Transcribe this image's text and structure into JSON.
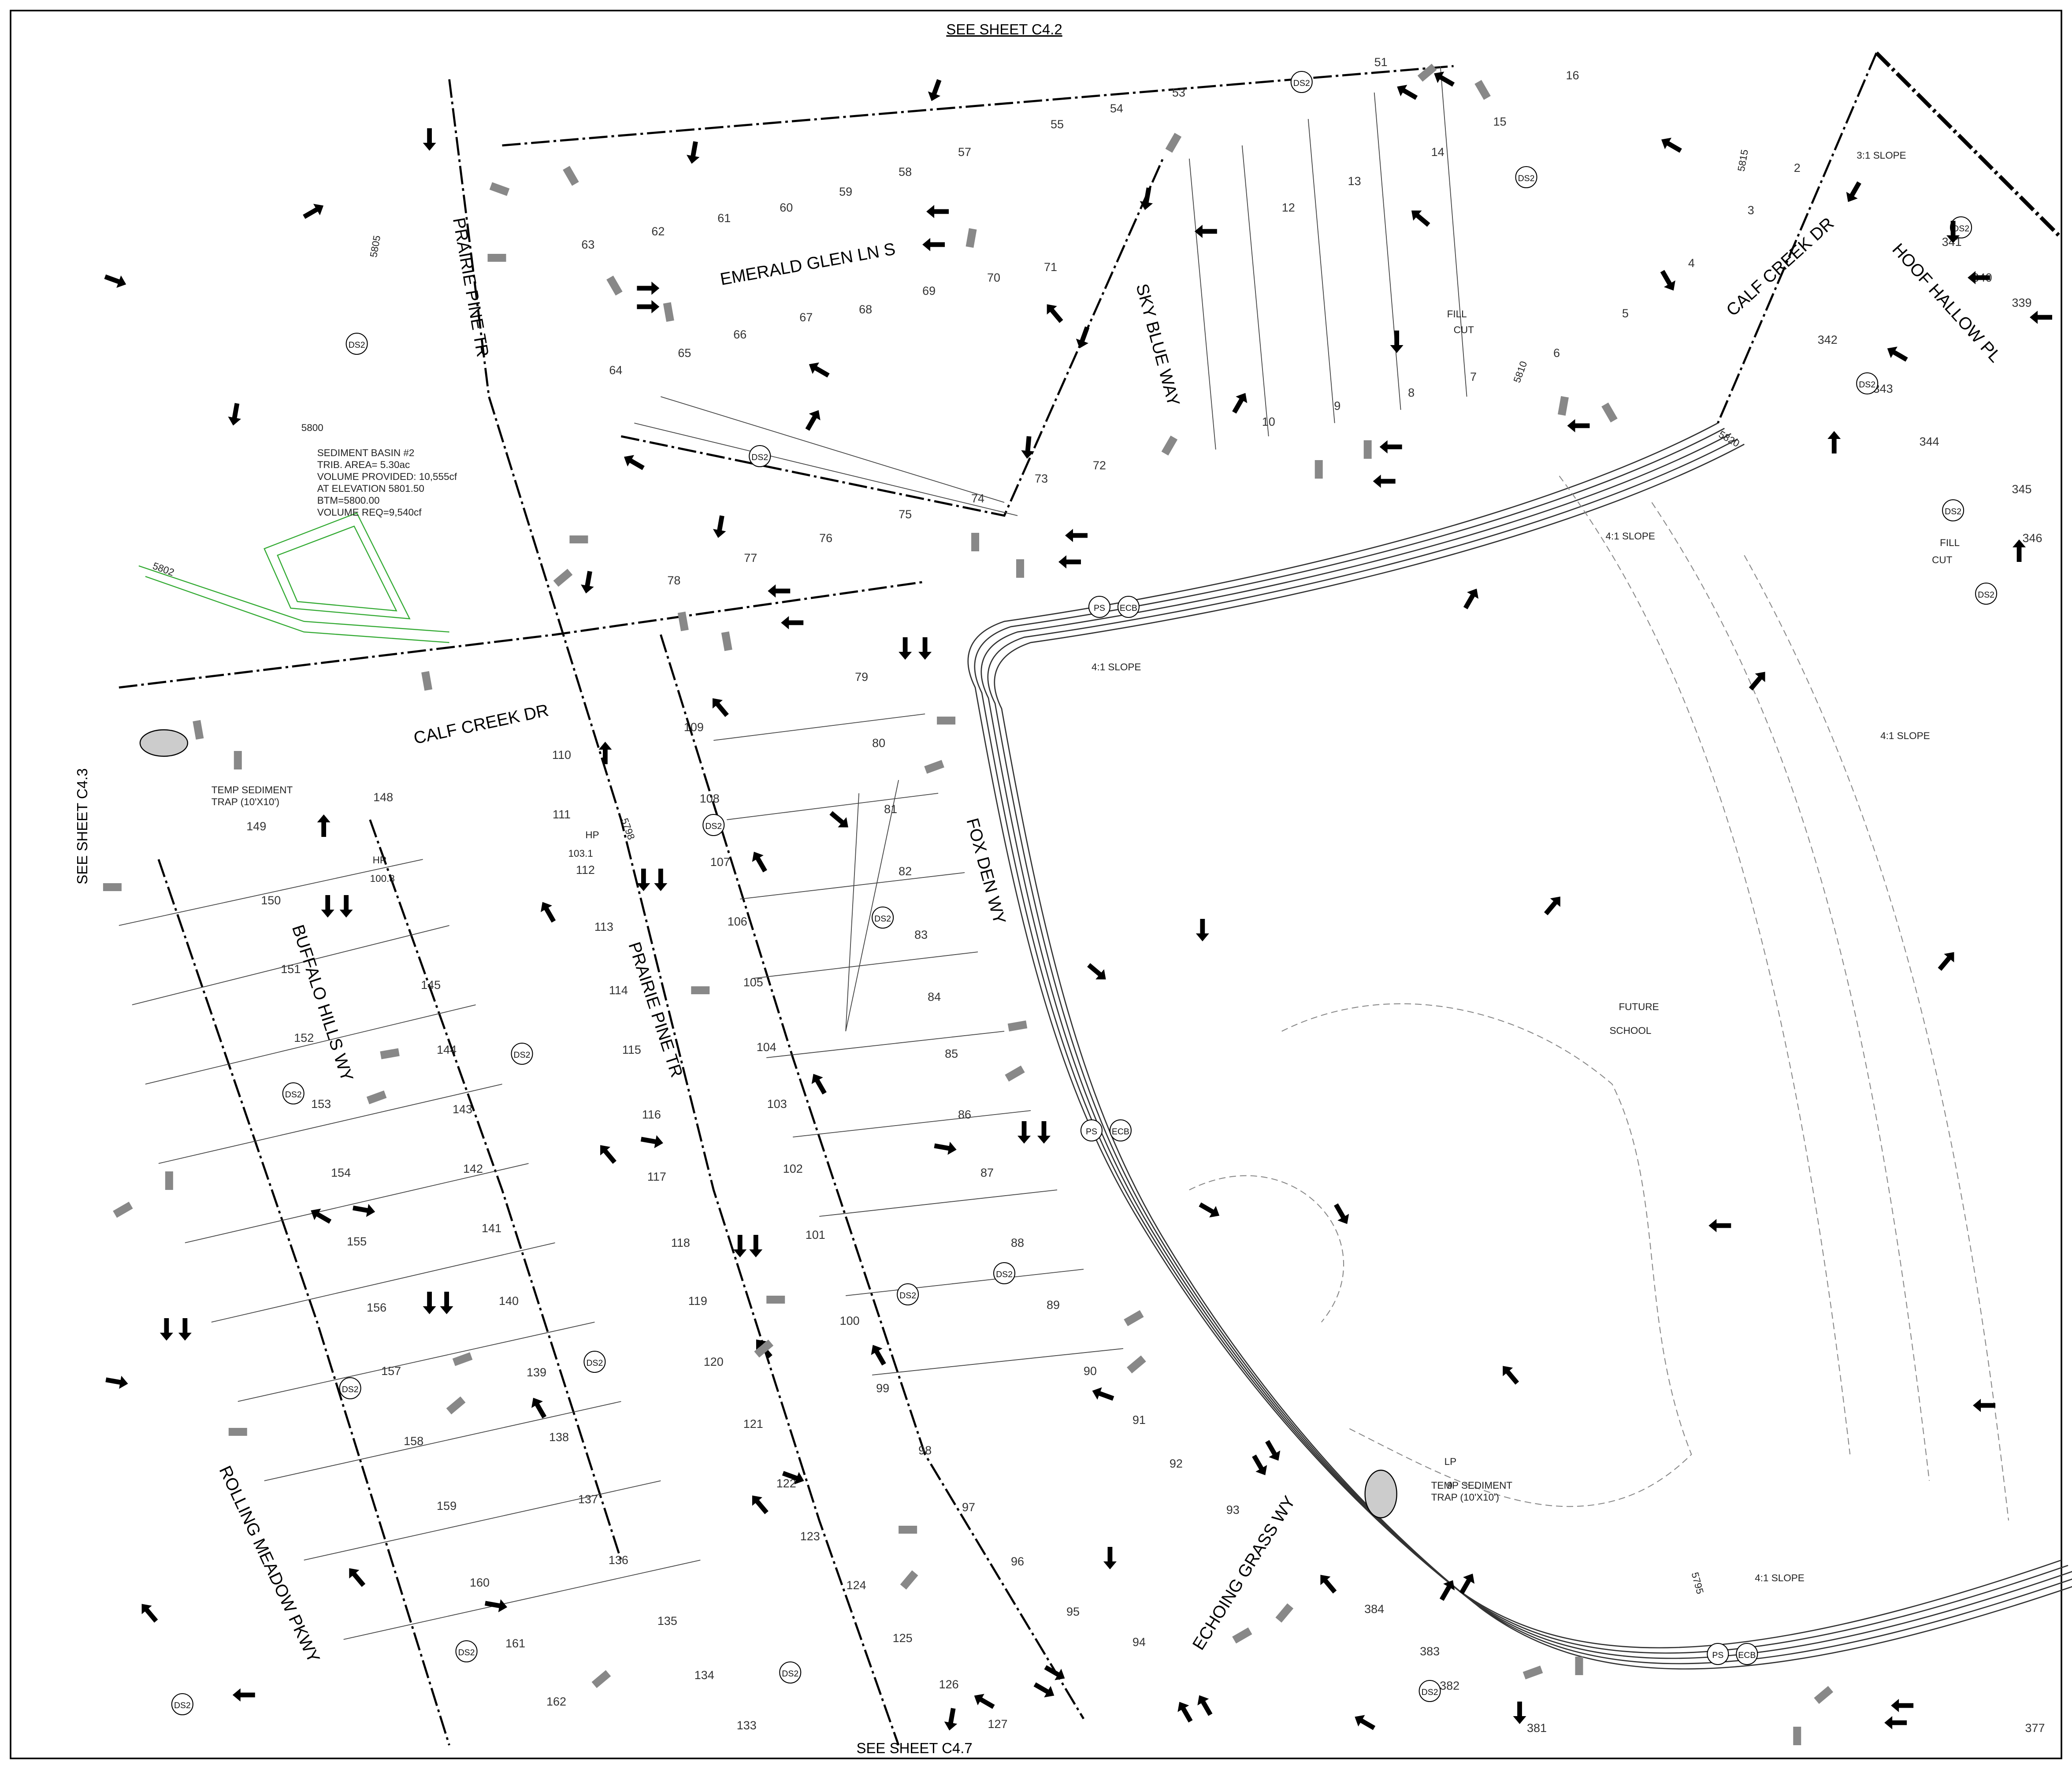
{
  "sheet_refs": {
    "top": "SEE SHEET C4.2",
    "bottom": "SEE SHEET C4.7",
    "left": "SEE SHEET C4.3"
  },
  "streets": [
    "PRAIRIE PINE TR",
    "EMERALD GLEN LN S",
    "SKY BLUE WAY",
    "CALF CREEK DR",
    "HOOF HALLOW PL",
    "CALF CREEK DR",
    "FOX DEN WY",
    "PRAIRIE PINE TR",
    "BUFFALO HILLS WY",
    "ROLLING MEADOW PKWY",
    "ECHOING GRASS WY"
  ],
  "sediment_basin": [
    "SEDIMENT BASIN #2",
    "TRIB. AREA= 5.30ac",
    "VOLUME PROVIDED: 10,555cf",
    "AT ELEVATION 5801.50",
    "BTM=5800.00",
    "VOLUME REQ=9,540cf"
  ],
  "notes": {
    "trap": [
      "TEMP SEDIMENT",
      "TRAP (10'X10')"
    ],
    "slope4": "4:1 SLOPE",
    "slope3": "3:1 SLOPE",
    "school": [
      "FUTURE",
      "SCHOOL"
    ],
    "hp1": [
      "HP",
      "103.1"
    ],
    "hp2": [
      "HP",
      "100.8"
    ],
    "lp": [
      "LP",
      "9"
    ],
    "fill": "FILL",
    "cut": "CUT"
  },
  "symbols": {
    "ds2": "DS2",
    "ps": "PS",
    "ecb": "ECB"
  },
  "contours": [
    "5800",
    "5802",
    "5805",
    "5798",
    "5795",
    "5810",
    "5815",
    "5820"
  ],
  "lots": [
    "63",
    "62",
    "61",
    "60",
    "59",
    "58",
    "57",
    "55",
    "54",
    "53",
    "51",
    "65",
    "64",
    "66",
    "67",
    "68",
    "69",
    "70",
    "71",
    "72",
    "73",
    "74",
    "75",
    "76",
    "77",
    "78",
    "12",
    "13",
    "14",
    "15",
    "16",
    "10",
    "9",
    "8",
    "7",
    "6",
    "5",
    "4",
    "3",
    "2",
    "79",
    "80",
    "81",
    "82",
    "83",
    "84",
    "85",
    "86",
    "87",
    "88",
    "89",
    "90",
    "91",
    "92",
    "93",
    "94",
    "95",
    "96",
    "97",
    "98",
    "99",
    "100",
    "101",
    "102",
    "103",
    "104",
    "105",
    "106",
    "107",
    "108",
    "109",
    "110",
    "111",
    "112",
    "113",
    "114",
    "115",
    "116",
    "117",
    "118",
    "119",
    "120",
    "121",
    "122",
    "123",
    "124",
    "125",
    "126",
    "127",
    "148",
    "149",
    "150",
    "151",
    "152",
    "153",
    "154",
    "155",
    "156",
    "157",
    "158",
    "159",
    "160",
    "161",
    "162",
    "145",
    "144",
    "143",
    "142",
    "141",
    "140",
    "139",
    "138",
    "137",
    "136",
    "135",
    "134",
    "133",
    "340",
    "341",
    "339",
    "342",
    "343",
    "344",
    "345",
    "346",
    "384",
    "383",
    "382",
    "381",
    "377"
  ]
}
